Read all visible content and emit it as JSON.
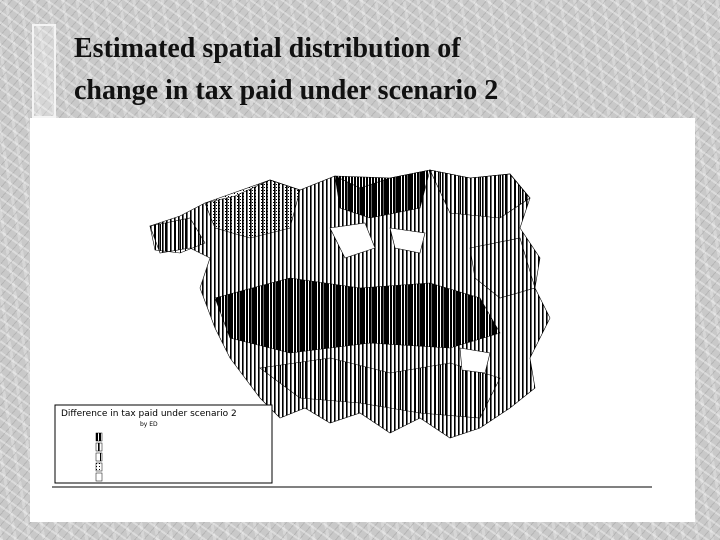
{
  "slide": {
    "title_lines": [
      "Estimated spatial distribution of",
      "change in tax paid under scenario 2"
    ]
  },
  "map": {
    "legend_title": "Difference in tax paid under scenario 2",
    "legend_subtitle": "by ED"
  }
}
